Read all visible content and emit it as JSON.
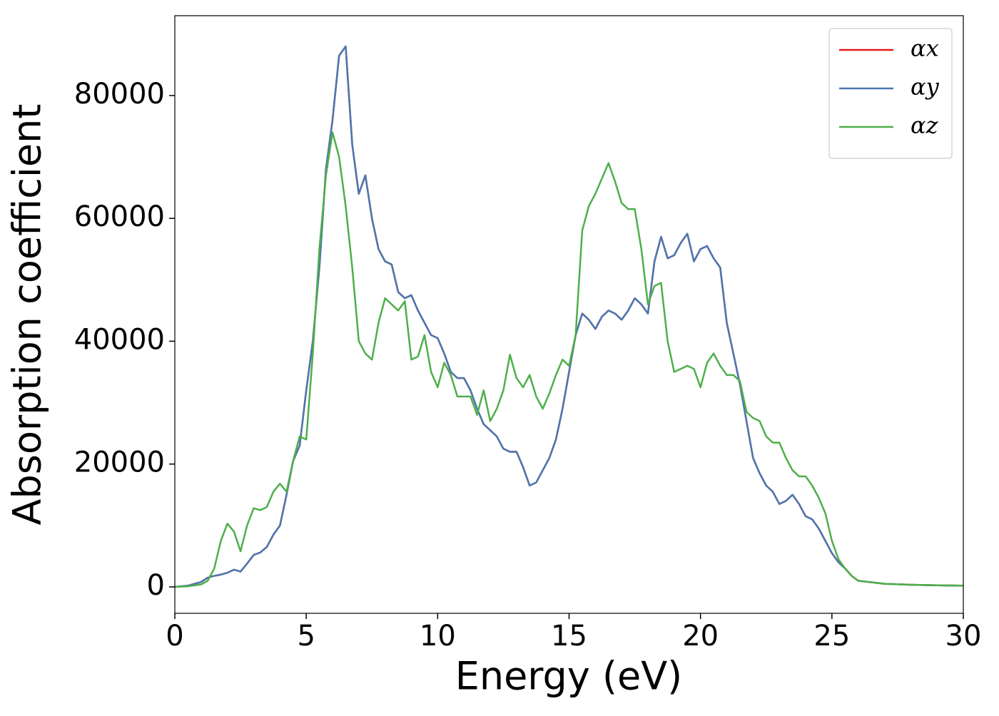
{
  "chart_data": {
    "type": "line",
    "xlabel": "Energy (eV)",
    "ylabel": "Absorption coefficient",
    "xlim": [
      0,
      30
    ],
    "xticks": [
      0,
      5,
      10,
      15,
      20,
      25,
      30
    ],
    "ylim": [
      -4300,
      93000
    ],
    "yticks": [
      0,
      20000,
      40000,
      60000,
      80000
    ],
    "legend": "upper right",
    "grid": false,
    "x": [
      0,
      0.5,
      1,
      1.25,
      1.5,
      1.75,
      2,
      2.25,
      2.5,
      2.75,
      3,
      3.25,
      3.5,
      3.75,
      4,
      4.25,
      4.5,
      4.75,
      5,
      5.25,
      5.5,
      5.75,
      6,
      6.25,
      6.5,
      6.75,
      7,
      7.25,
      7.5,
      7.75,
      8,
      8.25,
      8.5,
      8.75,
      9,
      9.25,
      9.5,
      9.75,
      10,
      10.25,
      10.5,
      10.75,
      11,
      11.25,
      11.5,
      11.75,
      12,
      12.25,
      12.5,
      12.75,
      13,
      13.25,
      13.5,
      13.75,
      14,
      14.25,
      14.5,
      14.75,
      15,
      15.25,
      15.5,
      15.75,
      16,
      16.25,
      16.5,
      16.75,
      17,
      17.25,
      17.5,
      17.75,
      18,
      18.25,
      18.5,
      18.75,
      19,
      19.25,
      19.5,
      19.75,
      20,
      20.25,
      20.5,
      20.75,
      21,
      21.25,
      21.5,
      21.75,
      22,
      22.25,
      22.5,
      22.75,
      23,
      23.25,
      23.5,
      23.75,
      24,
      24.25,
      24.5,
      24.75,
      25,
      25.25,
      25.5,
      25.75,
      26,
      27,
      28,
      29,
      30
    ],
    "series": [
      {
        "name": "αx",
        "color": "#e41a1c",
        "values": [
          0,
          200,
          800,
          1500,
          1800,
          2000,
          2300,
          2800,
          2500,
          3800,
          5200,
          5600,
          6500,
          8500,
          10000,
          15000,
          20500,
          23000,
          32000,
          40000,
          52000,
          68000,
          76000,
          86500,
          88000,
          72000,
          64000,
          67000,
          60000,
          55000,
          53000,
          52500,
          48000,
          47000,
          47500,
          45000,
          43000,
          41000,
          40500,
          38000,
          35000,
          34000,
          34000,
          32000,
          29000,
          26500,
          25500,
          24500,
          22500,
          22000,
          22000,
          19500,
          16500,
          17000,
          19000,
          21000,
          24000,
          29000,
          35000,
          41000,
          44500,
          43500,
          42000,
          44000,
          45000,
          44500,
          43500,
          45000,
          47000,
          46000,
          44500,
          53000,
          57000,
          53500,
          54000,
          56000,
          57500,
          53000,
          55000,
          55500,
          53500,
          52000,
          43000,
          38000,
          33000,
          27000,
          21000,
          18500,
          16500,
          15500,
          13500,
          14000,
          15000,
          13500,
          11500,
          11000,
          9500,
          7500,
          5500,
          4000,
          3000,
          1800,
          1000,
          500,
          350,
          250,
          200
        ]
      },
      {
        "name": "αy",
        "color": "#4a78b0",
        "values": [
          0,
          200,
          800,
          1500,
          1800,
          2000,
          2300,
          2800,
          2500,
          3800,
          5200,
          5600,
          6500,
          8500,
          10000,
          15000,
          20500,
          23000,
          32000,
          40000,
          52000,
          68000,
          76000,
          86500,
          88000,
          72000,
          64000,
          67000,
          60000,
          55000,
          53000,
          52500,
          48000,
          47000,
          47500,
          45000,
          43000,
          41000,
          40500,
          38000,
          35000,
          34000,
          34000,
          32000,
          29000,
          26500,
          25500,
          24500,
          22500,
          22000,
          22000,
          19500,
          16500,
          17000,
          19000,
          21000,
          24000,
          29000,
          35000,
          41000,
          44500,
          43500,
          42000,
          44000,
          45000,
          44500,
          43500,
          45000,
          47000,
          46000,
          44500,
          53000,
          57000,
          53500,
          54000,
          56000,
          57500,
          53000,
          55000,
          55500,
          53500,
          52000,
          43000,
          38000,
          33000,
          27000,
          21000,
          18500,
          16500,
          15500,
          13500,
          14000,
          15000,
          13500,
          11500,
          11000,
          9500,
          7500,
          5500,
          4000,
          3000,
          1800,
          1000,
          500,
          350,
          250,
          200
        ]
      },
      {
        "name": "αz",
        "color": "#4daf4a",
        "values": [
          0,
          100,
          400,
          1000,
          3000,
          7500,
          10300,
          9000,
          5800,
          10000,
          12800,
          12500,
          13000,
          15500,
          16800,
          15500,
          20500,
          24500,
          24000,
          38000,
          55000,
          67000,
          74000,
          70000,
          62000,
          52000,
          40000,
          38000,
          37000,
          43000,
          47000,
          46000,
          45000,
          46500,
          37000,
          37500,
          41000,
          35000,
          32500,
          36500,
          34500,
          31000,
          31000,
          31000,
          28000,
          32000,
          27000,
          29000,
          32000,
          37800,
          34000,
          32500,
          34500,
          31000,
          29000,
          31500,
          34500,
          37000,
          36000,
          41000,
          58000,
          62000,
          64000,
          66500,
          69000,
          66000,
          62500,
          61500,
          61500,
          55000,
          46000,
          49000,
          49500,
          40000,
          35000,
          35500,
          36000,
          35500,
          32500,
          36500,
          38000,
          36000,
          34500,
          34500,
          33500,
          28500,
          27500,
          27000,
          24500,
          23500,
          23500,
          21000,
          19000,
          18000,
          18000,
          16500,
          14500,
          12000,
          7500,
          4500,
          3000,
          1800,
          1000,
          500,
          350,
          250,
          200
        ]
      }
    ]
  }
}
